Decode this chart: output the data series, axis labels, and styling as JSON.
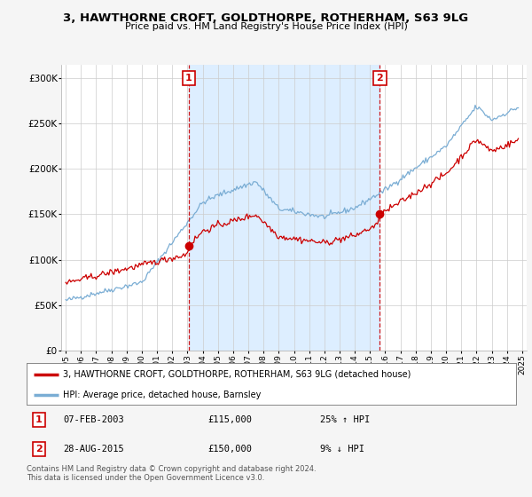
{
  "title": "3, HAWTHORNE CROFT, GOLDTHORPE, ROTHERHAM, S63 9LG",
  "subtitle": "Price paid vs. HM Land Registry's House Price Index (HPI)",
  "legend_line1": "3, HAWTHORNE CROFT, GOLDTHORPE, ROTHERHAM, S63 9LG (detached house)",
  "legend_line2": "HPI: Average price, detached house, Barnsley",
  "annotation1_date": "07-FEB-2003",
  "annotation1_price": "£115,000",
  "annotation1_hpi": "25% ↑ HPI",
  "annotation2_date": "28-AUG-2015",
  "annotation2_price": "£150,000",
  "annotation2_hpi": "9% ↓ HPI",
  "footer": "Contains HM Land Registry data © Crown copyright and database right 2024.\nThis data is licensed under the Open Government Licence v3.0.",
  "sale1_x": 2003.08,
  "sale1_y": 115000,
  "sale2_x": 2015.65,
  "sale2_y": 150000,
  "red_line_color": "#cc0000",
  "blue_line_color": "#7aadd4",
  "vline_color": "#cc0000",
  "shade_color": "#ddeeff",
  "background_color": "#f5f5f5",
  "plot_bg_color": "#ffffff",
  "ylim": [
    0,
    315000
  ],
  "yticks": [
    0,
    50000,
    100000,
    150000,
    200000,
    250000,
    300000
  ],
  "xlim_left": 1994.7,
  "xlim_right": 2025.3,
  "xticks": [
    1995,
    1996,
    1997,
    1998,
    1999,
    2000,
    2001,
    2002,
    2003,
    2004,
    2005,
    2006,
    2007,
    2008,
    2009,
    2010,
    2011,
    2012,
    2013,
    2014,
    2015,
    2016,
    2017,
    2018,
    2019,
    2020,
    2021,
    2022,
    2023,
    2024,
    2025
  ]
}
